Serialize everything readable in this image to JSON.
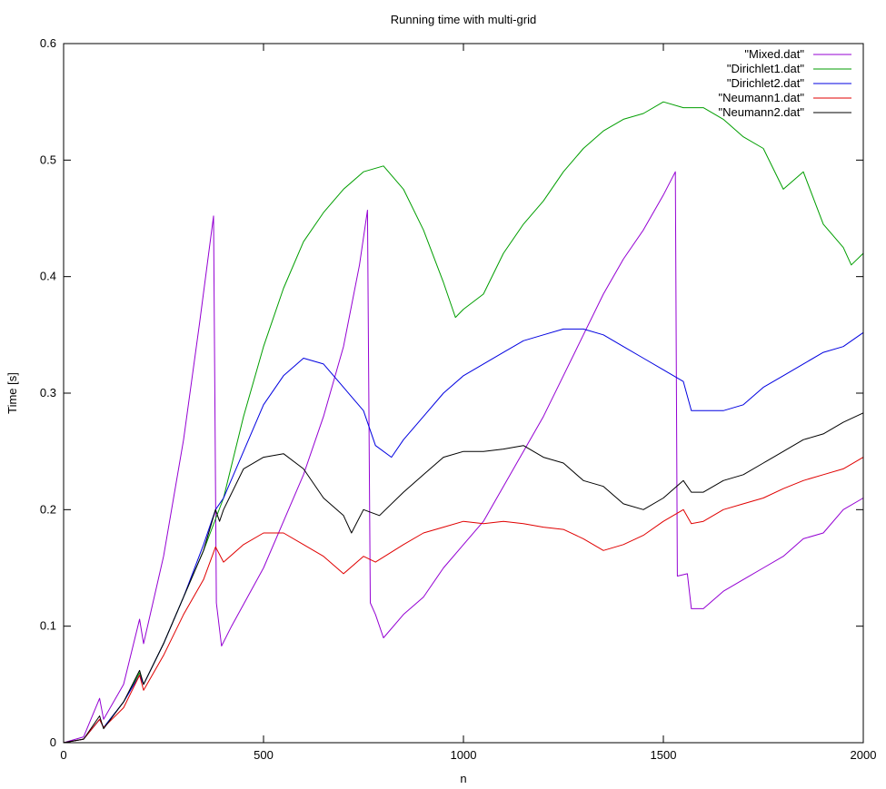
{
  "chart_data": {
    "type": "line",
    "title": "Running time with multi-grid",
    "xlabel": "n",
    "ylabel": "Time [s]",
    "xlim": [
      0,
      2000
    ],
    "ylim": [
      0,
      0.6
    ],
    "xticks": [
      "0",
      "500",
      "1000",
      "1500",
      "2000"
    ],
    "yticks": [
      "0",
      "0.1",
      "0.2",
      "0.3",
      "0.4",
      "0.5",
      "0.6"
    ],
    "grid": false,
    "legend": "top-right",
    "series": [
      {
        "name": "\"Mixed.dat\"",
        "color": "#9400d3",
        "points": [
          [
            0,
            0
          ],
          [
            50,
            0.005
          ],
          [
            90,
            0.038
          ],
          [
            100,
            0.02
          ],
          [
            150,
            0.05
          ],
          [
            190,
            0.106
          ],
          [
            200,
            0.085
          ],
          [
            250,
            0.16
          ],
          [
            300,
            0.26
          ],
          [
            340,
            0.36
          ],
          [
            375,
            0.452
          ],
          [
            382,
            0.12
          ],
          [
            395,
            0.083
          ],
          [
            420,
            0.1
          ],
          [
            460,
            0.125
          ],
          [
            500,
            0.15
          ],
          [
            550,
            0.19
          ],
          [
            600,
            0.23
          ],
          [
            650,
            0.28
          ],
          [
            700,
            0.34
          ],
          [
            740,
            0.41
          ],
          [
            760,
            0.457
          ],
          [
            767,
            0.12
          ],
          [
            780,
            0.11
          ],
          [
            800,
            0.09
          ],
          [
            850,
            0.11
          ],
          [
            900,
            0.125
          ],
          [
            950,
            0.15
          ],
          [
            1000,
            0.17
          ],
          [
            1050,
            0.19
          ],
          [
            1100,
            0.22
          ],
          [
            1150,
            0.25
          ],
          [
            1200,
            0.28
          ],
          [
            1250,
            0.315
          ],
          [
            1300,
            0.35
          ],
          [
            1350,
            0.385
          ],
          [
            1400,
            0.415
          ],
          [
            1450,
            0.44
          ],
          [
            1500,
            0.47
          ],
          [
            1530,
            0.49
          ],
          [
            1535,
            0.143
          ],
          [
            1560,
            0.145
          ],
          [
            1570,
            0.115
          ],
          [
            1600,
            0.115
          ],
          [
            1650,
            0.13
          ],
          [
            1700,
            0.14
          ],
          [
            1750,
            0.15
          ],
          [
            1800,
            0.16
          ],
          [
            1850,
            0.175
          ],
          [
            1900,
            0.18
          ],
          [
            1950,
            0.2
          ],
          [
            2000,
            0.21
          ]
        ]
      },
      {
        "name": "\"Dirichlet1.dat\"",
        "color": "#009e00",
        "points": [
          [
            0,
            0
          ],
          [
            50,
            0.003
          ],
          [
            90,
            0.02
          ],
          [
            100,
            0.013
          ],
          [
            150,
            0.035
          ],
          [
            190,
            0.06
          ],
          [
            200,
            0.05
          ],
          [
            250,
            0.085
          ],
          [
            300,
            0.125
          ],
          [
            350,
            0.165
          ],
          [
            400,
            0.21
          ],
          [
            450,
            0.28
          ],
          [
            500,
            0.34
          ],
          [
            550,
            0.39
          ],
          [
            600,
            0.43
          ],
          [
            650,
            0.455
          ],
          [
            700,
            0.475
          ],
          [
            750,
            0.49
          ],
          [
            800,
            0.495
          ],
          [
            850,
            0.475
          ],
          [
            900,
            0.44
          ],
          [
            950,
            0.395
          ],
          [
            980,
            0.365
          ],
          [
            1000,
            0.372
          ],
          [
            1050,
            0.385
          ],
          [
            1100,
            0.42
          ],
          [
            1150,
            0.445
          ],
          [
            1200,
            0.465
          ],
          [
            1250,
            0.49
          ],
          [
            1300,
            0.51
          ],
          [
            1350,
            0.525
          ],
          [
            1400,
            0.535
          ],
          [
            1450,
            0.54
          ],
          [
            1500,
            0.55
          ],
          [
            1550,
            0.545
          ],
          [
            1600,
            0.545
          ],
          [
            1650,
            0.535
          ],
          [
            1700,
            0.52
          ],
          [
            1750,
            0.51
          ],
          [
            1800,
            0.475
          ],
          [
            1850,
            0.49
          ],
          [
            1900,
            0.445
          ],
          [
            1950,
            0.425
          ],
          [
            1970,
            0.41
          ],
          [
            2000,
            0.42
          ]
        ]
      },
      {
        "name": "\"Dirichlet2.dat\"",
        "color": "#0000e0",
        "points": [
          [
            0,
            0
          ],
          [
            50,
            0.003
          ],
          [
            90,
            0.02
          ],
          [
            100,
            0.013
          ],
          [
            150,
            0.035
          ],
          [
            190,
            0.058
          ],
          [
            200,
            0.05
          ],
          [
            250,
            0.085
          ],
          [
            300,
            0.125
          ],
          [
            350,
            0.17
          ],
          [
            380,
            0.2
          ],
          [
            400,
            0.21
          ],
          [
            450,
            0.25
          ],
          [
            500,
            0.29
          ],
          [
            550,
            0.315
          ],
          [
            600,
            0.33
          ],
          [
            650,
            0.325
          ],
          [
            700,
            0.305
          ],
          [
            750,
            0.285
          ],
          [
            780,
            0.255
          ],
          [
            820,
            0.245
          ],
          [
            850,
            0.26
          ],
          [
            900,
            0.28
          ],
          [
            950,
            0.3
          ],
          [
            1000,
            0.315
          ],
          [
            1050,
            0.325
          ],
          [
            1100,
            0.335
          ],
          [
            1150,
            0.345
          ],
          [
            1200,
            0.35
          ],
          [
            1250,
            0.355
          ],
          [
            1300,
            0.355
          ],
          [
            1350,
            0.35
          ],
          [
            1400,
            0.34
          ],
          [
            1450,
            0.33
          ],
          [
            1500,
            0.32
          ],
          [
            1550,
            0.31
          ],
          [
            1570,
            0.285
          ],
          [
            1600,
            0.285
          ],
          [
            1650,
            0.285
          ],
          [
            1700,
            0.29
          ],
          [
            1750,
            0.305
          ],
          [
            1800,
            0.315
          ],
          [
            1850,
            0.325
          ],
          [
            1900,
            0.335
          ],
          [
            1950,
            0.34
          ],
          [
            2000,
            0.352
          ]
        ]
      },
      {
        "name": "\"Neumann1.dat\"",
        "color": "#e00000",
        "points": [
          [
            0,
            0
          ],
          [
            50,
            0.003
          ],
          [
            90,
            0.02
          ],
          [
            100,
            0.013
          ],
          [
            150,
            0.03
          ],
          [
            190,
            0.058
          ],
          [
            200,
            0.045
          ],
          [
            250,
            0.075
          ],
          [
            300,
            0.11
          ],
          [
            350,
            0.14
          ],
          [
            380,
            0.168
          ],
          [
            400,
            0.155
          ],
          [
            450,
            0.17
          ],
          [
            500,
            0.18
          ],
          [
            550,
            0.18
          ],
          [
            600,
            0.17
          ],
          [
            650,
            0.16
          ],
          [
            700,
            0.145
          ],
          [
            750,
            0.16
          ],
          [
            780,
            0.155
          ],
          [
            850,
            0.17
          ],
          [
            900,
            0.18
          ],
          [
            950,
            0.185
          ],
          [
            1000,
            0.19
          ],
          [
            1050,
            0.188
          ],
          [
            1100,
            0.19
          ],
          [
            1150,
            0.188
          ],
          [
            1200,
            0.185
          ],
          [
            1250,
            0.183
          ],
          [
            1300,
            0.175
          ],
          [
            1350,
            0.165
          ],
          [
            1400,
            0.17
          ],
          [
            1450,
            0.178
          ],
          [
            1500,
            0.19
          ],
          [
            1550,
            0.2
          ],
          [
            1570,
            0.188
          ],
          [
            1600,
            0.19
          ],
          [
            1650,
            0.2
          ],
          [
            1700,
            0.205
          ],
          [
            1750,
            0.21
          ],
          [
            1800,
            0.218
          ],
          [
            1850,
            0.225
          ],
          [
            1900,
            0.23
          ],
          [
            1950,
            0.235
          ],
          [
            2000,
            0.245
          ]
        ]
      },
      {
        "name": "\"Neumann2.dat\"",
        "color": "#000000",
        "points": [
          [
            0,
            0
          ],
          [
            50,
            0.003
          ],
          [
            90,
            0.023
          ],
          [
            100,
            0.012
          ],
          [
            150,
            0.035
          ],
          [
            190,
            0.062
          ],
          [
            200,
            0.05
          ],
          [
            250,
            0.085
          ],
          [
            300,
            0.125
          ],
          [
            350,
            0.165
          ],
          [
            380,
            0.2
          ],
          [
            390,
            0.19
          ],
          [
            400,
            0.2
          ],
          [
            450,
            0.235
          ],
          [
            500,
            0.245
          ],
          [
            550,
            0.248
          ],
          [
            600,
            0.235
          ],
          [
            650,
            0.21
          ],
          [
            700,
            0.195
          ],
          [
            720,
            0.18
          ],
          [
            750,
            0.2
          ],
          [
            790,
            0.195
          ],
          [
            850,
            0.215
          ],
          [
            900,
            0.23
          ],
          [
            950,
            0.245
          ],
          [
            1000,
            0.25
          ],
          [
            1050,
            0.25
          ],
          [
            1100,
            0.252
          ],
          [
            1150,
            0.255
          ],
          [
            1200,
            0.245
          ],
          [
            1250,
            0.24
          ],
          [
            1300,
            0.225
          ],
          [
            1350,
            0.22
          ],
          [
            1400,
            0.205
          ],
          [
            1450,
            0.2
          ],
          [
            1500,
            0.21
          ],
          [
            1550,
            0.225
          ],
          [
            1570,
            0.215
          ],
          [
            1600,
            0.215
          ],
          [
            1650,
            0.225
          ],
          [
            1700,
            0.23
          ],
          [
            1750,
            0.24
          ],
          [
            1800,
            0.25
          ],
          [
            1850,
            0.26
          ],
          [
            1900,
            0.265
          ],
          [
            1950,
            0.275
          ],
          [
            2000,
            0.283
          ]
        ]
      }
    ]
  }
}
